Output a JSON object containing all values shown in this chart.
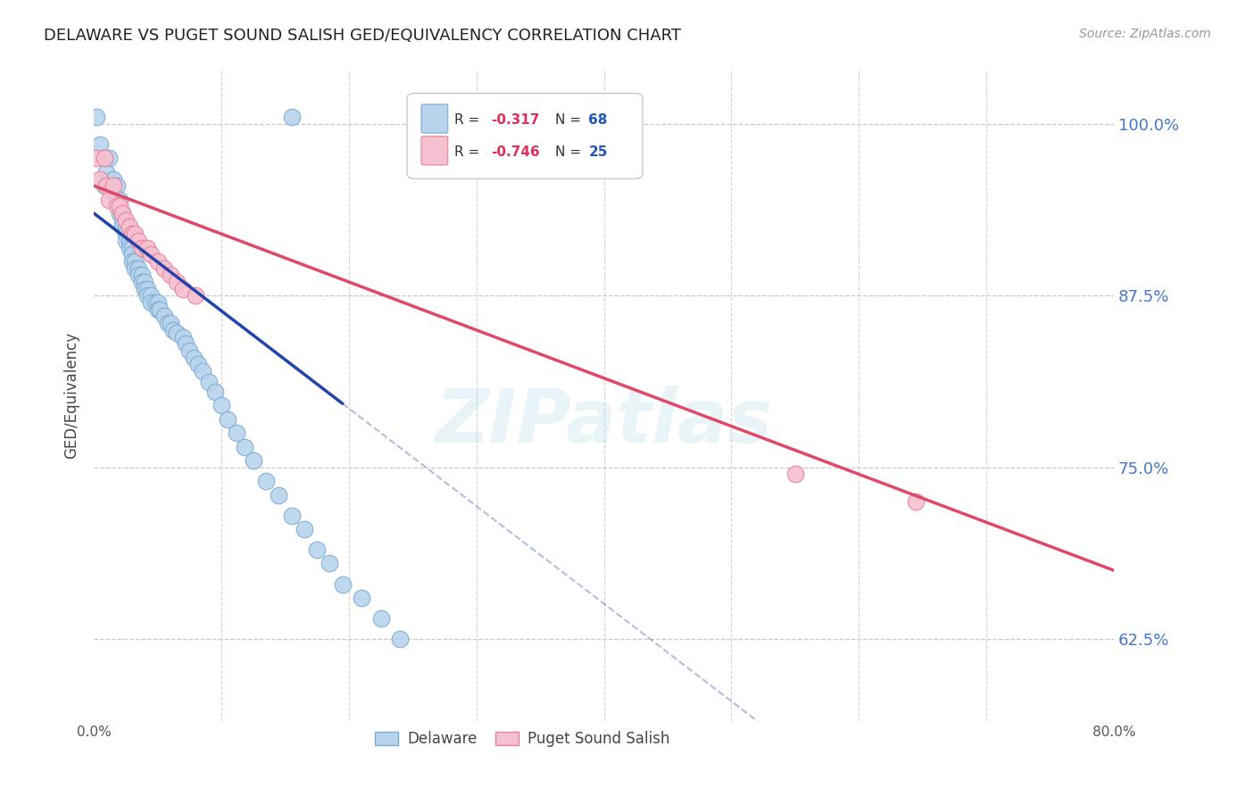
{
  "title": "DELAWARE VS PUGET SOUND SALISH GED/EQUIVALENCY CORRELATION CHART",
  "source": "Source: ZipAtlas.com",
  "ylabel": "GED/Equivalency",
  "ytick_labels": [
    "100.0%",
    "87.5%",
    "75.0%",
    "62.5%"
  ],
  "ytick_values": [
    1.0,
    0.875,
    0.75,
    0.625
  ],
  "xlim": [
    0.0,
    0.8
  ],
  "ylim": [
    0.565,
    1.04
  ],
  "background_color": "#ffffff",
  "grid_color": "#c8c8c8",
  "delaware_color": "#b8d4ed",
  "delaware_edge_color": "#7aaad4",
  "puget_color": "#f5c0d0",
  "puget_edge_color": "#e8809a",
  "delaware_line_color": "#2244aa",
  "puget_line_color": "#e04868",
  "legend_r_color": "#e0305a",
  "legend_n_color": "#2255bb",
  "watermark": "ZIPatlas",
  "del_line_x0": 0.0,
  "del_line_y0": 0.935,
  "del_line_x1": 0.38,
  "del_line_y1": 0.665,
  "del_line_solid_end": 0.195,
  "pug_line_x0": 0.0,
  "pug_line_y0": 0.955,
  "pug_line_x1": 0.8,
  "pug_line_y1": 0.675,
  "delaware_x": [
    0.002,
    0.155,
    0.005,
    0.008,
    0.008,
    0.01,
    0.012,
    0.015,
    0.015,
    0.018,
    0.018,
    0.02,
    0.02,
    0.022,
    0.022,
    0.022,
    0.025,
    0.025,
    0.025,
    0.028,
    0.028,
    0.03,
    0.03,
    0.03,
    0.032,
    0.032,
    0.035,
    0.035,
    0.038,
    0.038,
    0.04,
    0.04,
    0.042,
    0.042,
    0.045,
    0.045,
    0.048,
    0.05,
    0.05,
    0.052,
    0.055,
    0.058,
    0.06,
    0.062,
    0.065,
    0.07,
    0.072,
    0.075,
    0.078,
    0.082,
    0.085,
    0.09,
    0.095,
    0.1,
    0.105,
    0.112,
    0.118,
    0.125,
    0.135,
    0.145,
    0.155,
    0.165,
    0.175,
    0.185,
    0.195,
    0.21,
    0.225,
    0.24
  ],
  "delaware_y": [
    1.005,
    1.005,
    0.985,
    0.975,
    0.955,
    0.965,
    0.975,
    0.96,
    0.95,
    0.955,
    0.945,
    0.945,
    0.935,
    0.935,
    0.93,
    0.925,
    0.925,
    0.92,
    0.915,
    0.915,
    0.91,
    0.91,
    0.905,
    0.9,
    0.9,
    0.895,
    0.895,
    0.89,
    0.89,
    0.885,
    0.885,
    0.88,
    0.88,
    0.875,
    0.875,
    0.87,
    0.87,
    0.87,
    0.865,
    0.865,
    0.86,
    0.855,
    0.855,
    0.85,
    0.848,
    0.845,
    0.84,
    0.835,
    0.83,
    0.825,
    0.82,
    0.812,
    0.805,
    0.795,
    0.785,
    0.775,
    0.765,
    0.755,
    0.74,
    0.73,
    0.715,
    0.705,
    0.69,
    0.68,
    0.665,
    0.655,
    0.64,
    0.625
  ],
  "puget_x": [
    0.002,
    0.005,
    0.008,
    0.01,
    0.012,
    0.015,
    0.018,
    0.02,
    0.022,
    0.025,
    0.028,
    0.03,
    0.032,
    0.035,
    0.038,
    0.042,
    0.045,
    0.05,
    0.055,
    0.06,
    0.065,
    0.07,
    0.08,
    0.55,
    0.645
  ],
  "puget_y": [
    0.975,
    0.96,
    0.975,
    0.955,
    0.945,
    0.955,
    0.94,
    0.94,
    0.935,
    0.93,
    0.925,
    0.92,
    0.92,
    0.915,
    0.91,
    0.91,
    0.905,
    0.9,
    0.895,
    0.89,
    0.885,
    0.88,
    0.875,
    0.745,
    0.725
  ]
}
